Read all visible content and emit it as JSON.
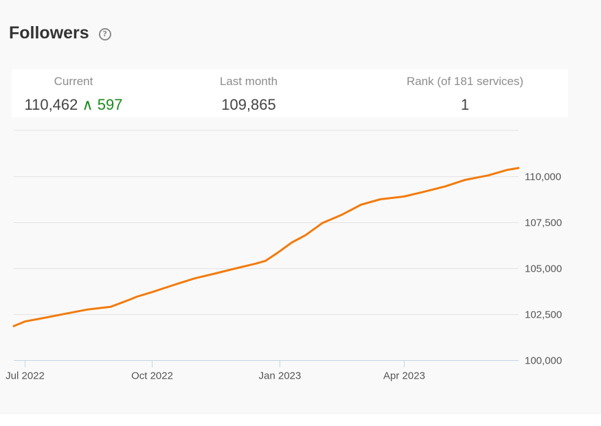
{
  "header": {
    "title": "Followers",
    "help_icon": "help-circle-icon"
  },
  "stats": {
    "current_label": "Current",
    "current_value": "110,462",
    "current_delta_arrow": "∧",
    "current_delta": "597",
    "last_month_label": "Last month",
    "last_month_value": "109,865",
    "rank_label": "Rank (of 181 services)",
    "rank_value": "1"
  },
  "colors": {
    "line": "#f27b0d",
    "grid": "#e3e3e3",
    "axis": "#c6d3e6",
    "delta": "#1a8a1a"
  },
  "chart_data": {
    "type": "line",
    "title": "",
    "xlabel": "",
    "ylabel": "",
    "x_ticks": [
      "Jul 2022",
      "Oct 2022",
      "Jan 2023",
      "Apr 2023"
    ],
    "y_ticks": [
      "100,000",
      "102,500",
      "105,000",
      "107,500",
      "110,000"
    ],
    "y_tick_values": [
      100000,
      102500,
      105000,
      107500,
      110000
    ],
    "ylim": [
      100000,
      112500
    ],
    "xlim": [
      "2022-06-23",
      "2023-06-23"
    ],
    "grid": true,
    "y_axis_side": "right",
    "series": [
      {
        "x": [
          "2022-06-23",
          "2022-07-01",
          "2022-07-15",
          "2022-08-01",
          "2022-08-15",
          "2022-09-01",
          "2022-09-15",
          "2022-09-20",
          "2022-10-01",
          "2022-10-15",
          "2022-11-01",
          "2022-11-15",
          "2022-12-01",
          "2022-12-15",
          "2022-12-22",
          "2022-12-31",
          "2023-01-10",
          "2023-01-20",
          "2023-02-01",
          "2023-02-15",
          "2023-03-01",
          "2023-03-15",
          "2023-04-01",
          "2023-04-15",
          "2023-05-01",
          "2023-05-15",
          "2023-06-01",
          "2023-06-15",
          "2023-06-23"
        ],
        "values": [
          101850,
          102100,
          102300,
          102550,
          102750,
          102900,
          103300,
          103450,
          103700,
          104050,
          104450,
          104700,
          105000,
          105250,
          105400,
          105850,
          106400,
          106800,
          107450,
          107900,
          108450,
          108750,
          108900,
          109150,
          109450,
          109800,
          110050,
          110350,
          110450
        ]
      }
    ]
  }
}
